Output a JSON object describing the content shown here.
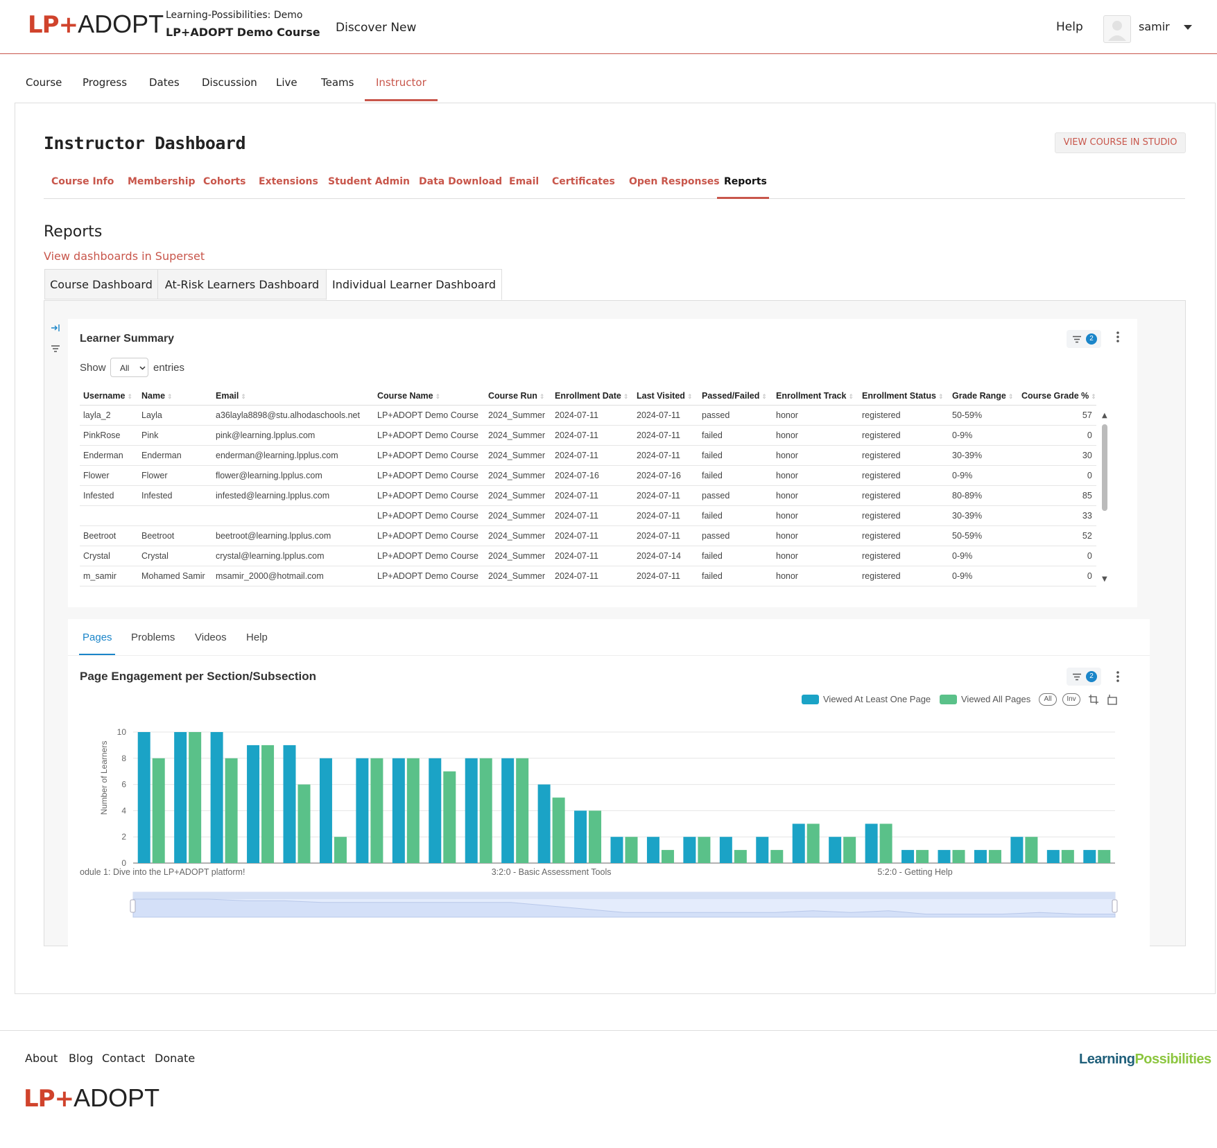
{
  "header": {
    "logo_lp": "LP+",
    "logo_adopt": "ADOPT",
    "org": "Learning-Possibilities: Demo",
    "course": "LP+ADOPT Demo Course",
    "discover": "Discover New",
    "help": "Help",
    "user": "samir"
  },
  "course_tabs": [
    "Course",
    "Progress",
    "Dates",
    "Discussion",
    "Live",
    "Teams",
    "Instructor"
  ],
  "dashboard": {
    "title": "Instructor Dashboard",
    "studio_button": "VIEW COURSE IN STUDIO",
    "tabs": [
      "Course Info",
      "Membership",
      "Cohorts",
      "Extensions",
      "Student Admin",
      "Data Download",
      "Email",
      "Certificates",
      "Open Responses",
      "Reports"
    ]
  },
  "reports": {
    "heading": "Reports",
    "superset_link": "View dashboards in Superset",
    "dash_tabs": [
      "Course Dashboard",
      "At-Risk Learners Dashboard",
      "Individual Learner Dashboard"
    ]
  },
  "learner_summary": {
    "title": "Learner Summary",
    "filter_count": "2",
    "show_label": "Show",
    "show_value": "All",
    "entries_label": "entries",
    "columns": [
      "Username",
      "Name",
      "Email",
      "Course Name",
      "Course Run",
      "Enrollment Date",
      "Last Visited",
      "Passed/Failed",
      "Enrollment Track",
      "Enrollment Status",
      "Grade Range",
      "Course Grade %"
    ],
    "rows": [
      [
        "layla_2",
        "Layla",
        "a36layla8898@stu.alhodaschools.net",
        "LP+ADOPT Demo Course",
        "2024_Summer",
        "2024-07-11",
        "2024-07-11",
        "passed",
        "honor",
        "registered",
        "50-59%",
        "57"
      ],
      [
        "PinkRose",
        "Pink",
        "pink@learning.lpplus.com",
        "LP+ADOPT Demo Course",
        "2024_Summer",
        "2024-07-11",
        "2024-07-11",
        "failed",
        "honor",
        "registered",
        "0-9%",
        "0"
      ],
      [
        "Enderman",
        "Enderman",
        "enderman@learning.lpplus.com",
        "LP+ADOPT Demo Course",
        "2024_Summer",
        "2024-07-11",
        "2024-07-11",
        "failed",
        "honor",
        "registered",
        "30-39%",
        "30"
      ],
      [
        "Flower",
        "Flower",
        "flower@learning.lpplus.com",
        "LP+ADOPT Demo Course",
        "2024_Summer",
        "2024-07-16",
        "2024-07-16",
        "failed",
        "honor",
        "registered",
        "0-9%",
        "0"
      ],
      [
        "Infested",
        "Infested",
        "infested@learning.lpplus.com",
        "LP+ADOPT Demo Course",
        "2024_Summer",
        "2024-07-11",
        "2024-07-11",
        "passed",
        "honor",
        "registered",
        "80-89%",
        "85"
      ],
      [
        "",
        "",
        "",
        "LP+ADOPT Demo Course",
        "2024_Summer",
        "2024-07-11",
        "2024-07-11",
        "failed",
        "honor",
        "registered",
        "30-39%",
        "33"
      ],
      [
        "Beetroot",
        "Beetroot",
        "beetroot@learning.lpplus.com",
        "LP+ADOPT Demo Course",
        "2024_Summer",
        "2024-07-11",
        "2024-07-11",
        "passed",
        "honor",
        "registered",
        "50-59%",
        "52"
      ],
      [
        "Crystal",
        "Crystal",
        "crystal@learning.lpplus.com",
        "LP+ADOPT Demo Course",
        "2024_Summer",
        "2024-07-11",
        "2024-07-14",
        "failed",
        "honor",
        "registered",
        "0-9%",
        "0"
      ],
      [
        "m_samir",
        "Mohamed Samir",
        "msamir_2000@hotmail.com",
        "LP+ADOPT Demo Course",
        "2024_Summer",
        "2024-07-11",
        "2024-07-11",
        "failed",
        "honor",
        "registered",
        "0-9%",
        "0"
      ]
    ]
  },
  "engagement_tabs": [
    "Pages",
    "Problems",
    "Videos",
    "Help"
  ],
  "chart_panel": {
    "filter_count": "2",
    "legend_buttons": [
      "All",
      "Inv"
    ]
  },
  "chart_data": {
    "type": "bar",
    "title": "Page Engagement per Section/Subsection",
    "ylabel": "Number of Learners",
    "ylim": [
      0,
      10
    ],
    "yticks": [
      0,
      2,
      4,
      6,
      8,
      10
    ],
    "xtick_labels": [
      "odule 1: Dive into the LP+ADOPT platform!",
      "3:2:0 - Basic Assessment Tools",
      "5:2:0 - Getting Help"
    ],
    "xtick_positions": [
      0,
      11,
      21
    ],
    "legend_position": "top-right",
    "colors": {
      "viewed_at_least_one": "#1ba3c6",
      "viewed_all": "#5ac189"
    },
    "series": [
      {
        "name": "Viewed At Least One Page",
        "values": [
          10,
          10,
          10,
          9,
          9,
          8,
          8,
          8,
          8,
          8,
          8,
          6,
          4,
          2,
          2,
          2,
          2,
          2,
          3,
          2,
          3,
          1,
          1,
          1,
          2,
          1,
          1
        ]
      },
      {
        "name": "Viewed All Pages",
        "values": [
          8,
          10,
          8,
          9,
          6,
          2,
          8,
          8,
          7,
          8,
          8,
          5,
          4,
          2,
          1,
          2,
          1,
          1,
          3,
          2,
          3,
          1,
          1,
          1,
          2,
          1,
          1
        ]
      }
    ]
  },
  "footer": {
    "links": [
      "About",
      "Blog",
      "Contact",
      "Donate"
    ],
    "logo_lp": "LP+",
    "logo_adopt": "ADOPT",
    "brand_learning": "Learning",
    "brand_possibilities": "Possibilities"
  }
}
